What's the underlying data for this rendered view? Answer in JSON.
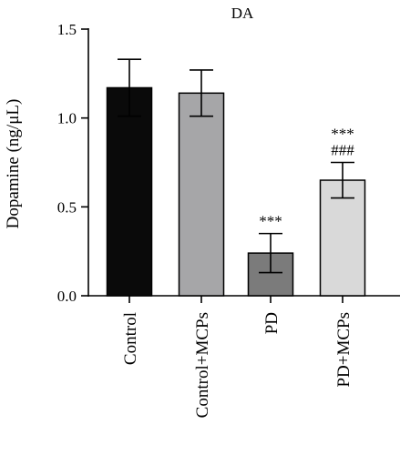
{
  "chart_data": {
    "type": "bar",
    "title": "DA",
    "xlabel": "",
    "ylabel": "Dopamine (ng/μL)",
    "ylim": [
      0,
      1.5
    ],
    "yticks": [
      "0.0",
      "0.5",
      "1.0",
      "1.5"
    ],
    "categories": [
      "Control",
      "Control+MCPs",
      "PD",
      "PD+MCPs"
    ],
    "values": [
      1.17,
      1.14,
      0.24,
      0.65
    ],
    "errors": [
      0.16,
      0.13,
      0.11,
      0.1
    ],
    "colors": [
      "#0a0a0a",
      "#a6a6a8",
      "#7b7b7b",
      "#d9d9d9"
    ],
    "annotations": [
      {
        "category": "PD",
        "lines": [
          "***"
        ]
      },
      {
        "category": "PD+MCPs",
        "lines": [
          "***",
          "###"
        ]
      }
    ],
    "grid": false
  }
}
